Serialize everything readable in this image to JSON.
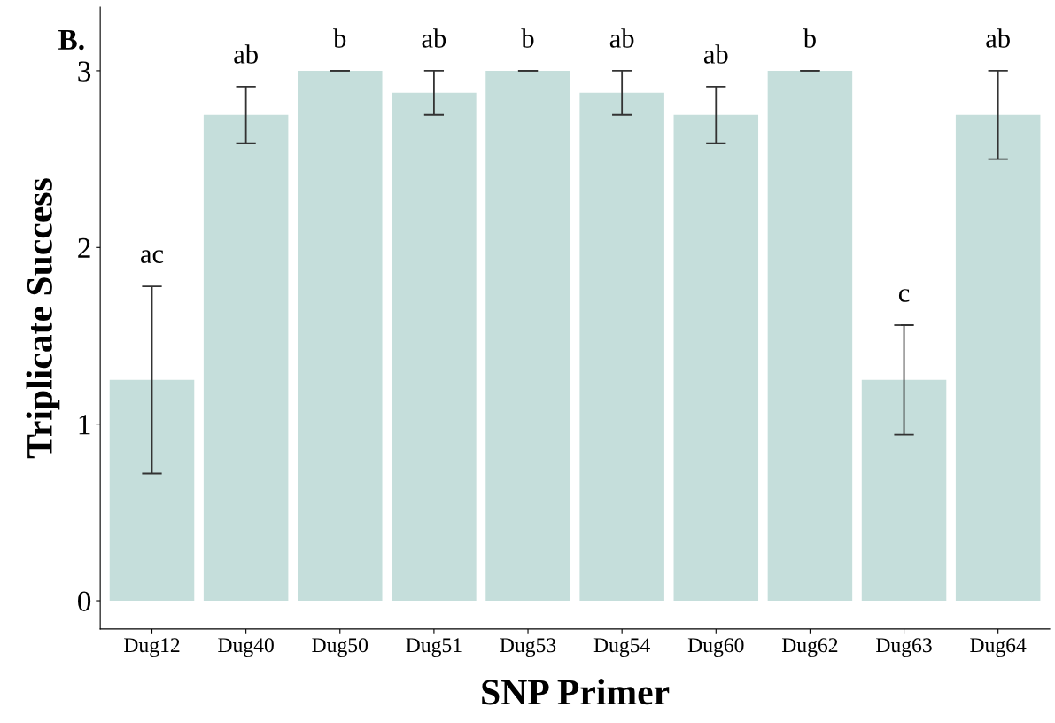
{
  "chart_data": {
    "type": "bar",
    "xlabel": "SNP Primer",
    "ylabel": "Triplicate Success",
    "categories": [
      "Dug12",
      "Dug40",
      "Dug50",
      "Dug51",
      "Dug53",
      "Dug54",
      "Dug60",
      "Dug62",
      "Dug63",
      "Dug64"
    ],
    "values": [
      1.25,
      2.75,
      3,
      2.875,
      3,
      2.875,
      2.75,
      3,
      1.25,
      2.75
    ],
    "errors": [
      0.53,
      0.16,
      0,
      0.125,
      0,
      0.125,
      0.16,
      0,
      0.31,
      0.25
    ],
    "color": "#c5dedb",
    "ylim": [
      -0.16,
      3.36
    ],
    "yticks": [
      0,
      1,
      2,
      3
    ],
    "grid": false,
    "annotations": [
      "B.",
      "ac",
      "ab",
      "b",
      "ab",
      "b",
      "ab",
      "ab",
      "b",
      "c",
      "ab"
    ]
  }
}
